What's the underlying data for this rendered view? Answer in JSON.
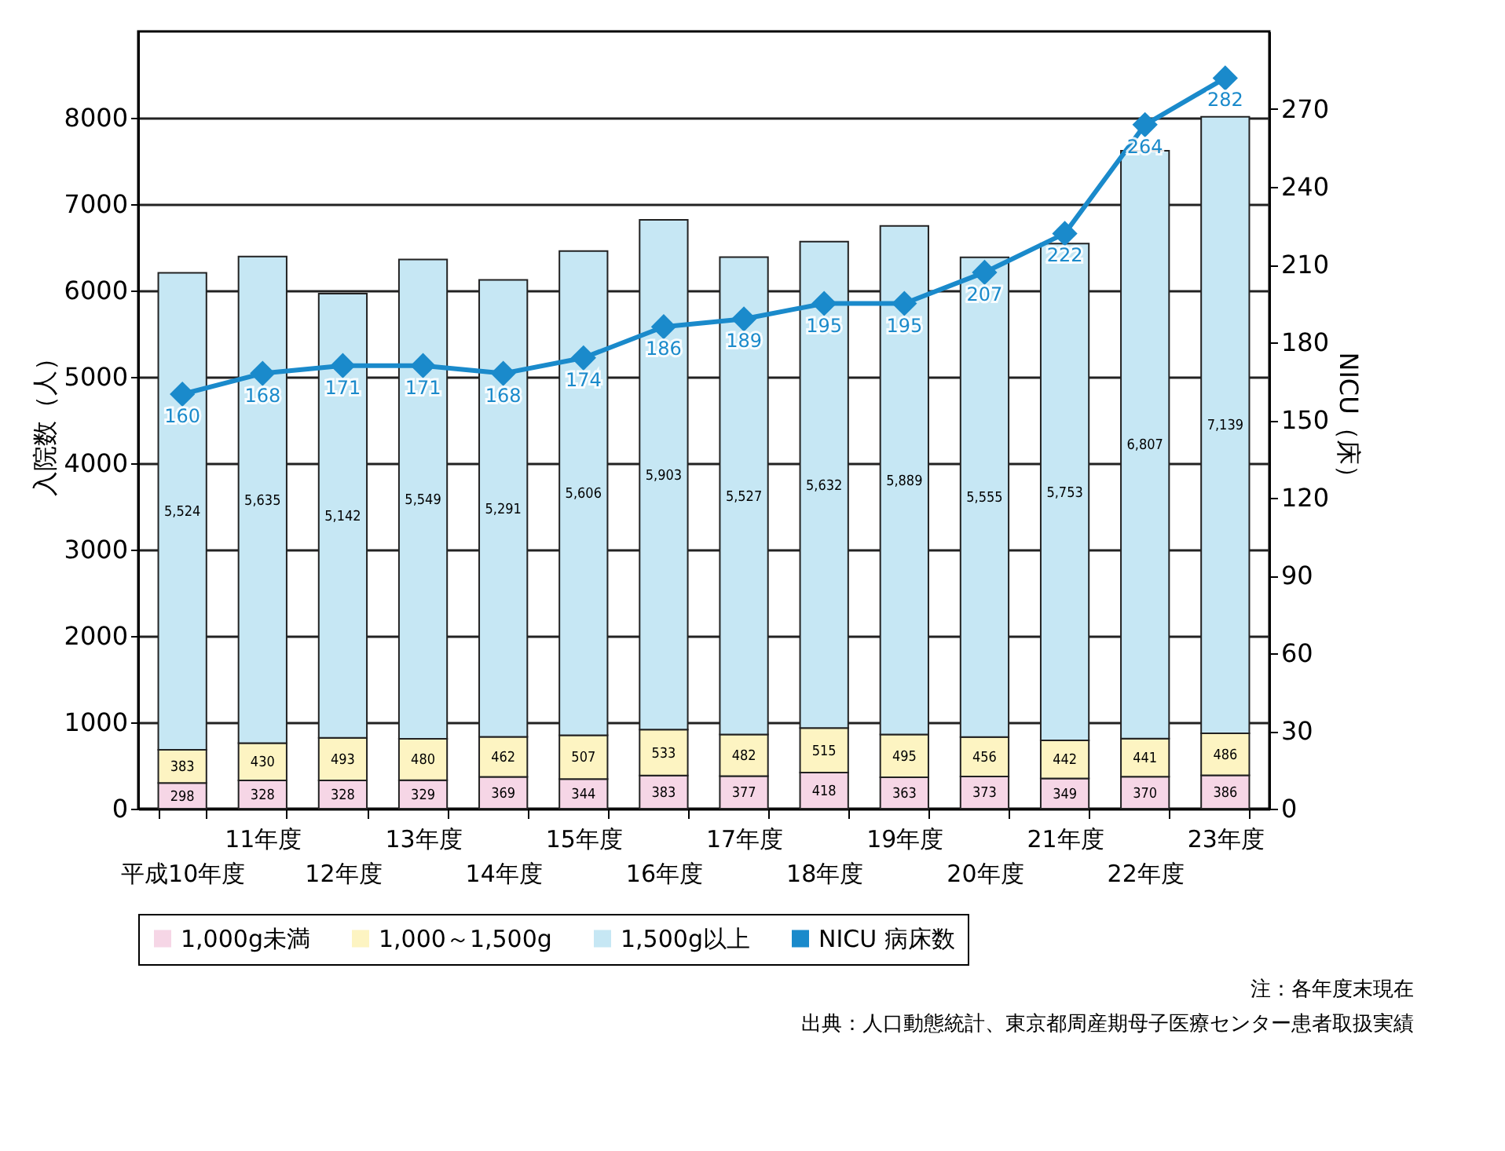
{
  "chart_data": {
    "type": "bar",
    "stacked": true,
    "categories": [
      "平成10年度",
      "11年度",
      "12年度",
      "13年度",
      "14年度",
      "15年度",
      "16年度",
      "17年度",
      "18年度",
      "19年度",
      "20年度",
      "21年度",
      "22年度",
      "23年度"
    ],
    "series": [
      {
        "name": "1,000g未満",
        "color": "#f6d6e6",
        "values": [
          298,
          328,
          328,
          329,
          369,
          344,
          383,
          377,
          418,
          363,
          373,
          349,
          370,
          386
        ]
      },
      {
        "name": "1,000～1,500g",
        "color": "#fdf4c2",
        "values": [
          383,
          430,
          493,
          480,
          462,
          507,
          533,
          482,
          515,
          495,
          456,
          442,
          441,
          486
        ]
      },
      {
        "name": "1,500g以上",
        "color": "#c6e7f4",
        "values": [
          5524,
          5635,
          5142,
          5549,
          5291,
          5606,
          5903,
          5527,
          5632,
          5889,
          5555,
          5753,
          6807,
          7139
        ],
        "value_labels": [
          "5,524",
          "5,635",
          "5,142",
          "5,549",
          "5,291",
          "5,606",
          "5,903",
          "5,527",
          "5,632",
          "5,889",
          "5,555",
          "5,753",
          "6,807",
          "7,139"
        ]
      },
      {
        "name": "NICU 病床数",
        "type": "line",
        "axis": "y2",
        "color": "#1a8acb",
        "marker": "diamond",
        "values": [
          160,
          168,
          171,
          171,
          168,
          174,
          186,
          189,
          195,
          195,
          207,
          222,
          264,
          282
        ]
      }
    ],
    "ylabel": "入院数（人）",
    "y2label": "NICU（床）",
    "ylim": [
      0,
      9000
    ],
    "yticks": [
      0,
      1000,
      2000,
      3000,
      4000,
      5000,
      6000,
      7000,
      8000
    ],
    "y2lim": [
      0,
      300
    ],
    "y2ticks": [
      0,
      30,
      60,
      90,
      120,
      150,
      180,
      210,
      240,
      270
    ],
    "grid": "y",
    "legend": "bottom",
    "data_labels": true,
    "annotations": [
      "注：各年度末現在",
      "出典：人口動態統計、東京都周産期母子医療センター患者取扱実績"
    ]
  }
}
